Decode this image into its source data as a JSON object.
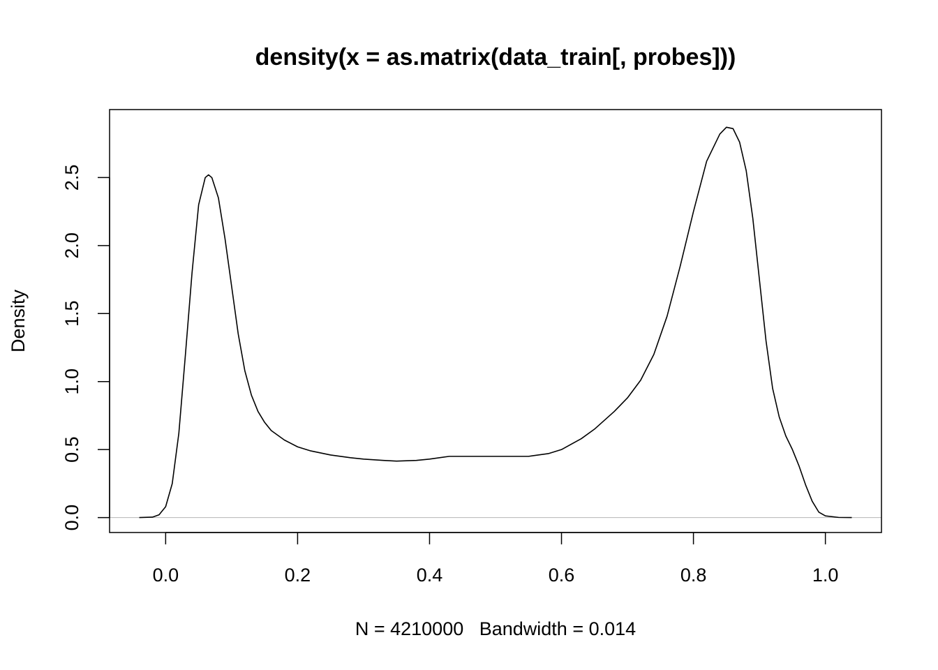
{
  "chart_data": {
    "type": "line",
    "title": "density(x = as.matrix(data_train[, probes]))",
    "xlabel": "N = 4210000   Bandwidth = 0.014",
    "ylabel": "Density",
    "xlim": [
      -0.085,
      1.085
    ],
    "ylim": [
      -0.11,
      3.0
    ],
    "x_ticks": [
      {
        "value": 0.0,
        "label": "0.0"
      },
      {
        "value": 0.2,
        "label": "0.2"
      },
      {
        "value": 0.4,
        "label": "0.4"
      },
      {
        "value": 0.6,
        "label": "0.6"
      },
      {
        "value": 0.8,
        "label": "0.8"
      },
      {
        "value": 1.0,
        "label": "1.0"
      }
    ],
    "y_ticks": [
      {
        "value": 0.0,
        "label": "0.0"
      },
      {
        "value": 0.5,
        "label": "0.5"
      },
      {
        "value": 1.0,
        "label": "1.0"
      },
      {
        "value": 1.5,
        "label": "1.5"
      },
      {
        "value": 2.0,
        "label": "2.0"
      },
      {
        "value": 2.5,
        "label": "2.5"
      }
    ],
    "baseline": 0,
    "grid": false,
    "colors": {
      "line": "#000000",
      "baseline": "#bebebe",
      "frame": "#000000"
    },
    "series": [
      {
        "x": [
          -0.04,
          -0.02,
          -0.01,
          0.0,
          0.01,
          0.02,
          0.03,
          0.04,
          0.05,
          0.06,
          0.065,
          0.07,
          0.08,
          0.09,
          0.1,
          0.11,
          0.12,
          0.13,
          0.14,
          0.15,
          0.16,
          0.18,
          0.2,
          0.22,
          0.25,
          0.28,
          0.3,
          0.33,
          0.35,
          0.38,
          0.4,
          0.43,
          0.45,
          0.5,
          0.55,
          0.58,
          0.6,
          0.63,
          0.65,
          0.68,
          0.7,
          0.72,
          0.74,
          0.76,
          0.78,
          0.8,
          0.82,
          0.84,
          0.85,
          0.86,
          0.87,
          0.88,
          0.89,
          0.9,
          0.91,
          0.92,
          0.93,
          0.94,
          0.95,
          0.96,
          0.97,
          0.98,
          0.99,
          1.0,
          1.02,
          1.04
        ],
        "y": [
          0.0,
          0.003,
          0.02,
          0.08,
          0.25,
          0.62,
          1.2,
          1.8,
          2.3,
          2.5,
          2.52,
          2.5,
          2.35,
          2.05,
          1.7,
          1.35,
          1.08,
          0.9,
          0.78,
          0.7,
          0.64,
          0.57,
          0.52,
          0.49,
          0.46,
          0.44,
          0.43,
          0.42,
          0.415,
          0.42,
          0.43,
          0.45,
          0.45,
          0.45,
          0.45,
          0.47,
          0.5,
          0.58,
          0.65,
          0.78,
          0.88,
          1.01,
          1.2,
          1.48,
          1.85,
          2.25,
          2.62,
          2.82,
          2.87,
          2.86,
          2.76,
          2.55,
          2.2,
          1.75,
          1.3,
          0.95,
          0.74,
          0.6,
          0.5,
          0.38,
          0.24,
          0.12,
          0.04,
          0.012,
          0.001,
          0.0
        ]
      }
    ]
  }
}
